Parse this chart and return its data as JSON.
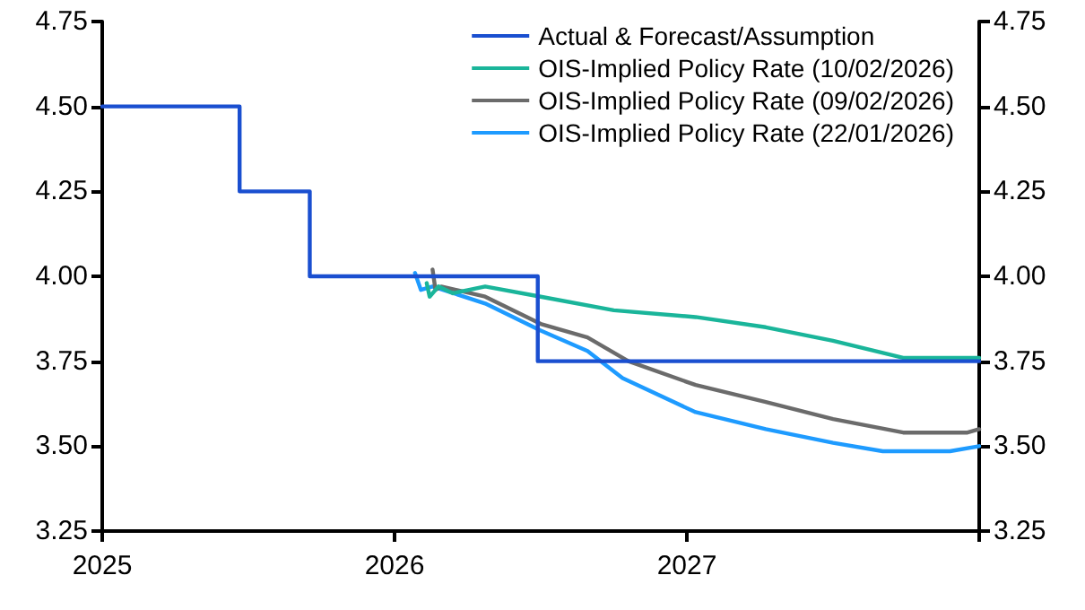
{
  "chart_data": {
    "type": "line",
    "xlim": [
      2025,
      2028
    ],
    "xticks": [
      2025,
      2026,
      2027,
      {
        "value": 2028,
        "label": null
      }
    ],
    "ylim": [
      3.25,
      4.75
    ],
    "yticks": [
      3.25,
      {
        "value": 3.5,
        "label": "3.50"
      },
      3.75,
      {
        "value": 4,
        "label": "4.00"
      },
      4.25,
      {
        "value": 4.5,
        "label": "4.50"
      },
      4.75
    ],
    "y2lim": [
      3.25,
      4.75
    ],
    "y2ticks": [
      3.25,
      {
        "value": 3.5,
        "label": "3.50"
      },
      3.75,
      {
        "value": 4,
        "label": "4.00"
      },
      4.25,
      {
        "value": 4.5,
        "label": "4.50"
      },
      4.75
    ],
    "grid": false,
    "legend": "top right",
    "marker": "none",
    "line_style": "solid",
    "series": [
      {
        "name": "Actual & Forecast/Assumption",
        "color": "#1a4fd0",
        "x": [
          2025,
          2025.47,
          2025.47,
          2025.71,
          2025.71,
          2026.49,
          2026.49,
          2028
        ],
        "values": [
          4.5,
          4.5,
          4.25,
          4.25,
          4,
          4,
          3.75,
          3.75
        ]
      },
      {
        "name": "OIS-Implied Policy Rate (10/02/2026)",
        "color": "#1ab59a",
        "x": [
          2026.11,
          2026.12,
          2026.15,
          2026.2,
          2026.31,
          2026.5,
          2026.75,
          2027.03,
          2027.27,
          2027.5,
          2027.74,
          2028
        ],
        "values": [
          3.98,
          3.94,
          3.97,
          3.95,
          3.97,
          3.94,
          3.9,
          3.88,
          3.85,
          3.81,
          3.76,
          3.76
        ]
      },
      {
        "name": "OIS-Implied Policy Rate (09/02/2026)",
        "color": "#6b6b6b",
        "x": [
          2026.13,
          2026.14,
          2026.16,
          2026.31,
          2026.5,
          2026.66,
          2026.8,
          2027.03,
          2027.27,
          2027.5,
          2027.74,
          2027.96,
          2028
        ],
        "values": [
          4.02,
          3.96,
          3.97,
          3.94,
          3.86,
          3.82,
          3.75,
          3.68,
          3.63,
          3.58,
          3.54,
          3.54,
          3.55
        ]
      },
      {
        "name": "OIS-Implied Policy Rate (22/01/2026)",
        "color": "#1e9bff",
        "x": [
          2026.07,
          2026.09,
          2026.13,
          2026.31,
          2026.5,
          2026.66,
          2026.78,
          2027.03,
          2027.27,
          2027.5,
          2027.67,
          2027.9,
          2028
        ],
        "values": [
          4.01,
          3.96,
          3.97,
          3.92,
          3.84,
          3.78,
          3.7,
          3.6,
          3.55,
          3.51,
          3.485,
          3.485,
          3.5
        ]
      }
    ]
  }
}
